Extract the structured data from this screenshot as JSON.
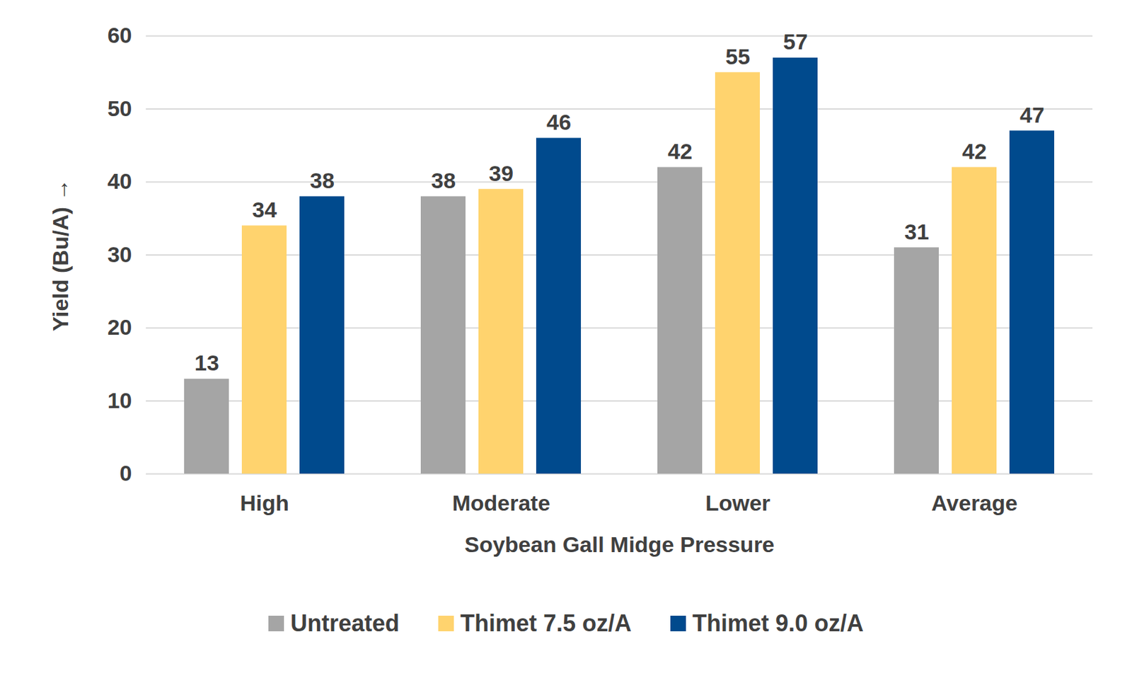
{
  "chart_data": {
    "type": "bar",
    "categories": [
      "High",
      "Moderate",
      "Lower",
      "Average"
    ],
    "series": [
      {
        "name": "Untreated",
        "color": "#a5a5a5",
        "values": [
          13,
          38,
          42,
          31
        ]
      },
      {
        "name": "Thimet 7.5 oz/A",
        "color": "#ffd36e",
        "values": [
          34,
          39,
          55,
          42
        ]
      },
      {
        "name": "Thimet 9.0 oz/A",
        "color": "#004a8d",
        "values": [
          38,
          46,
          57,
          47
        ]
      }
    ],
    "x_label": "Soybean Gall Midge Pressure",
    "y_label": "Yield (Bu/A)",
    "ylim": [
      0,
      60
    ],
    "yticks": [
      0,
      10,
      20,
      30,
      40,
      50,
      60
    ],
    "grid": true,
    "data_labels": true,
    "legend": "bottom"
  }
}
